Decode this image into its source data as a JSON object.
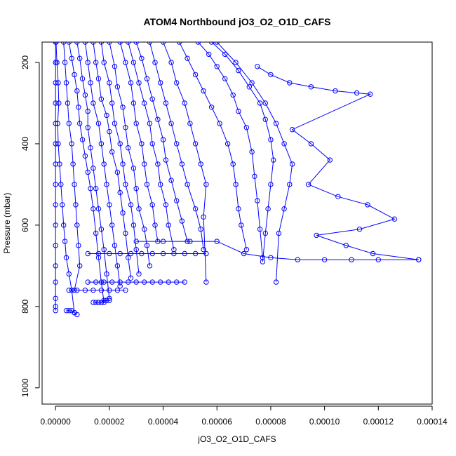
{
  "chart_data": {
    "type": "line",
    "title": "ATOM4 Northbound jO3_O2_O1D_CAFS",
    "xlabel": "jO3_O2_O1D_CAFS",
    "ylabel": "Pressure (mbar)",
    "xlim": [
      -5e-06,
      0.00014
    ],
    "ylim": [
      1040,
      150
    ],
    "y_reversed": true,
    "grid": false,
    "legend": "none",
    "color": "#0000ff",
    "x_ticks": [
      0,
      2e-05,
      4e-05,
      6e-05,
      8e-05,
      0.0001,
      0.00012,
      0.00014
    ],
    "x_tick_labels": [
      "0.00000",
      "0.00002",
      "0.00004",
      "0.00006",
      "0.00008",
      "0.00010",
      "0.00012",
      "0.00014"
    ],
    "y_ticks": [
      200,
      400,
      600,
      800,
      1000
    ],
    "y_tick_labels": [
      "200",
      "400",
      "600",
      "800",
      "1000"
    ],
    "series": [
      {
        "x": [
          0,
          0,
          0,
          0,
          0,
          0,
          0,
          0,
          0,
          0,
          0,
          0,
          0,
          0,
          0,
          0
        ],
        "y": [
          150,
          200,
          250,
          300,
          350,
          400,
          450,
          500,
          550,
          600,
          650,
          700,
          740,
          780,
          800,
          810
        ]
      },
      {
        "x": [
          2e-07,
          5e-07,
          1e-06,
          1.2e-06,
          8e-07,
          1e-06,
          1.5e-06,
          2e-06,
          2.5e-06,
          3e-06,
          3.5e-06,
          4e-06,
          5e-06,
          6e-06,
          7e-06
        ],
        "y": [
          150,
          200,
          250,
          300,
          350,
          400,
          450,
          500,
          550,
          600,
          640,
          680,
          720,
          760,
          815
        ]
      },
      {
        "x": [
          3e-06,
          3.5e-06,
          4e-06,
          4.5e-06,
          5e-06,
          6e-06,
          6.5e-06,
          7e-06,
          7.5e-06,
          8e-06,
          8.5e-06,
          9e-06,
          7e-06
        ],
        "y": [
          150,
          200,
          250,
          300,
          350,
          400,
          450,
          500,
          550,
          600,
          650,
          700,
          760
        ]
      },
      {
        "x": [
          5e-06,
          6e-06,
          7e-06,
          8e-06,
          8.5e-06,
          9e-06,
          1e-05,
          1.1e-05,
          1.2e-05,
          1.3e-05,
          1.4e-05,
          1.5e-05,
          1.6e-05,
          1.7e-05,
          1.8e-05
        ],
        "y": [
          150,
          190,
          230,
          270,
          310,
          350,
          390,
          430,
          470,
          510,
          560,
          620,
          680,
          740,
          790
        ]
      },
      {
        "x": [
          8e-06,
          9e-06,
          1e-05,
          1.1e-05,
          1.2e-05,
          1.2e-05,
          1.3e-05,
          1.4e-05,
          1.5e-05,
          1.6e-05,
          1.7e-05,
          1.8e-05,
          1.9e-05,
          2e-05
        ],
        "y": [
          150,
          190,
          240,
          280,
          320,
          360,
          410,
          460,
          510,
          560,
          610,
          660,
          720,
          780
        ]
      },
      {
        "x": [
          1.1e-05,
          1.2e-05,
          1.3e-05,
          1.4e-05,
          1.6e-05,
          1.7e-05,
          1.8e-05,
          1.9e-05,
          2e-05,
          2.1e-05,
          2.2e-05,
          2.3e-05,
          2.4e-05
        ],
        "y": [
          150,
          200,
          250,
          300,
          350,
          400,
          450,
          500,
          550,
          600,
          650,
          700,
          750
        ]
      },
      {
        "x": [
          1.4e-05,
          1.5e-05,
          1.6e-05,
          1.7e-05,
          1.9e-05,
          2e-05,
          2.1e-05,
          2.3e-05,
          2.4e-05,
          2.5e-05,
          2.6e-05,
          2.7e-05,
          2.8e-05
        ],
        "y": [
          150,
          200,
          240,
          290,
          330,
          370,
          420,
          470,
          520,
          570,
          620,
          680,
          730
        ]
      },
      {
        "x": [
          1.7e-05,
          1.8e-05,
          2e-05,
          2.1e-05,
          2.2e-05,
          2.4e-05,
          2.5e-05,
          2.6e-05,
          2.8e-05,
          2.9e-05,
          3e-05,
          3.1e-05
        ],
        "y": [
          150,
          200,
          250,
          300,
          350,
          400,
          450,
          500,
          550,
          600,
          660,
          720
        ]
      },
      {
        "x": [
          2e-05,
          2.2e-05,
          2.3e-05,
          2.5e-05,
          2.6e-05,
          2.7e-05,
          2.9e-05,
          3e-05,
          3.1e-05,
          3.3e-05,
          3.4e-05,
          3.5e-05
        ],
        "y": [
          150,
          210,
          260,
          310,
          360,
          410,
          460,
          510,
          560,
          610,
          650,
          700
        ]
      },
      {
        "x": [
          2.4e-05,
          2.6e-05,
          2.8e-05,
          2.9e-05,
          3e-05,
          3.2e-05,
          3.3e-05,
          3.4e-05,
          3.6e-05,
          3.7e-05,
          3.8e-05
        ],
        "y": [
          150,
          200,
          250,
          300,
          350,
          400,
          450,
          500,
          550,
          600,
          640
        ]
      },
      {
        "x": [
          2.7e-05,
          2.9e-05,
          3.1e-05,
          3.3e-05,
          3.5e-05,
          3.6e-05,
          3.8e-05,
          3.9e-05,
          4.1e-05,
          4.2e-05,
          4.4e-05
        ],
        "y": [
          150,
          200,
          250,
          300,
          350,
          400,
          450,
          500,
          550,
          600,
          660
        ]
      },
      {
        "x": [
          3e-05,
          3.2e-05,
          3.4e-05,
          3.6e-05,
          3.8e-05,
          4e-05,
          4.1e-05,
          4.3e-05,
          4.5e-05,
          4.7e-05,
          4.9e-05
        ],
        "y": [
          150,
          190,
          240,
          290,
          340,
          390,
          440,
          490,
          540,
          590,
          640
        ]
      },
      {
        "x": [
          3.5e-05,
          3.7e-05,
          3.9e-05,
          4.1e-05,
          4.3e-05,
          4.5e-05,
          4.7e-05,
          4.9e-05,
          5.2e-05,
          5.4e-05,
          5.5e-05
        ],
        "y": [
          150,
          200,
          250,
          300,
          350,
          400,
          450,
          500,
          560,
          610,
          660
        ]
      },
      {
        "x": [
          4e-05,
          4.3e-05,
          4.5e-05,
          4.8e-05,
          5e-05,
          5.2e-05,
          5.4e-05,
          5.6e-05,
          5.5e-05,
          5.6e-05
        ],
        "y": [
          150,
          200,
          250,
          300,
          350,
          400,
          450,
          500,
          580,
          740
        ]
      },
      {
        "x": [
          4.6e-05,
          4.9e-05,
          5.2e-05,
          5.5e-05,
          5.8e-05,
          6.1e-05,
          6.4e-05,
          6.6e-05,
          6.7e-05,
          6.8e-05,
          6.9e-05,
          7.1e-05
        ],
        "y": [
          150,
          190,
          230,
          270,
          310,
          350,
          400,
          450,
          500,
          560,
          600,
          660
        ]
      },
      {
        "x": [
          5.3e-05,
          5.7e-05,
          6e-05,
          6.3e-05,
          6.6e-05,
          6.8e-05,
          7.1e-05,
          7.3e-05,
          7.4e-05,
          7.5e-05,
          7.6e-05,
          7.7e-05
        ],
        "y": [
          150,
          180,
          210,
          240,
          280,
          320,
          360,
          420,
          480,
          540,
          610,
          680
        ]
      },
      {
        "x": [
          5.8e-05,
          6.3e-05,
          6.8e-05,
          7.2e-05,
          7.6e-05,
          7.8e-05,
          8e-05,
          8.1e-05,
          8e-05,
          7.9e-05,
          7.8e-05,
          7.7e-05
        ],
        "y": [
          150,
          180,
          220,
          260,
          300,
          340,
          390,
          440,
          500,
          560,
          620,
          690
        ]
      },
      {
        "x": [
          6e-05,
          6.7e-05,
          7.3e-05,
          7.8e-05,
          8.2e-05,
          8.5e-05,
          8.8e-05,
          8.7e-05,
          8.5e-05,
          8.3e-05,
          8.2e-05
        ],
        "y": [
          150,
          200,
          250,
          300,
          350,
          400,
          450,
          500,
          560,
          620,
          740
        ]
      },
      {
        "x": [
          7.5e-05,
          8e-05,
          8.7e-05,
          9.5e-05,
          0.000104,
          0.000112,
          0.000117,
          8.8e-05,
          9.5e-05,
          0.000102,
          9.4e-05,
          0.000105,
          0.000116,
          0.000126,
          0.000113,
          9.7e-05,
          0.000108,
          0.000118,
          0.000135
        ],
        "y": [
          210,
          230,
          250,
          260,
          270,
          275,
          278,
          365,
          400,
          440,
          500,
          530,
          550,
          585,
          610,
          625,
          650,
          670,
          685
        ]
      },
      {
        "x": [
          3e-05,
          4e-05,
          5e-05,
          6e-05,
          7e-05,
          8e-05,
          9e-05,
          0.0001,
          0.00011,
          0.00012,
          0.000135
        ],
        "y": [
          640,
          640,
          640,
          640,
          670,
          680,
          685,
          685,
          685,
          685,
          685
        ]
      },
      {
        "x": [
          1.2e-05,
          1.6e-05,
          2e-05,
          2.4e-05,
          2.8e-05,
          3.2e-05,
          3.6e-05,
          4e-05,
          4.4e-05,
          4.8e-05,
          5.2e-05,
          5.6e-05
        ],
        "y": [
          670,
          670,
          670,
          670,
          670,
          670,
          670,
          670,
          670,
          670,
          670,
          670
        ]
      },
      {
        "x": [
          1.2e-05,
          1.5e-05,
          1.8e-05,
          2.1e-05,
          2.4e-05,
          2.7e-05,
          3e-05,
          3.3e-05,
          3.6e-05,
          3.9e-05,
          4.2e-05,
          4.5e-05,
          4.8e-05
        ],
        "y": [
          740,
          740,
          740,
          740,
          740,
          740,
          740,
          740,
          740,
          740,
          740,
          740,
          740
        ]
      },
      {
        "x": [
          5e-06,
          8e-06,
          1.1e-05,
          1.4e-05,
          1.7e-05,
          2e-05,
          2.3e-05,
          2.6e-05
        ],
        "y": [
          760,
          760,
          760,
          760,
          760,
          760,
          760,
          760
        ]
      },
      {
        "x": [
          1.4e-05,
          1.5e-05,
          1.6e-05,
          1.7e-05,
          1.8e-05,
          1.9e-05,
          2e-05
        ],
        "y": [
          790,
          790,
          790,
          790,
          785,
          785,
          785
        ]
      },
      {
        "x": [
          4e-06,
          5e-06,
          6e-06,
          7e-06,
          8e-06
        ],
        "y": [
          810,
          810,
          810,
          815,
          820
        ]
      }
    ]
  }
}
